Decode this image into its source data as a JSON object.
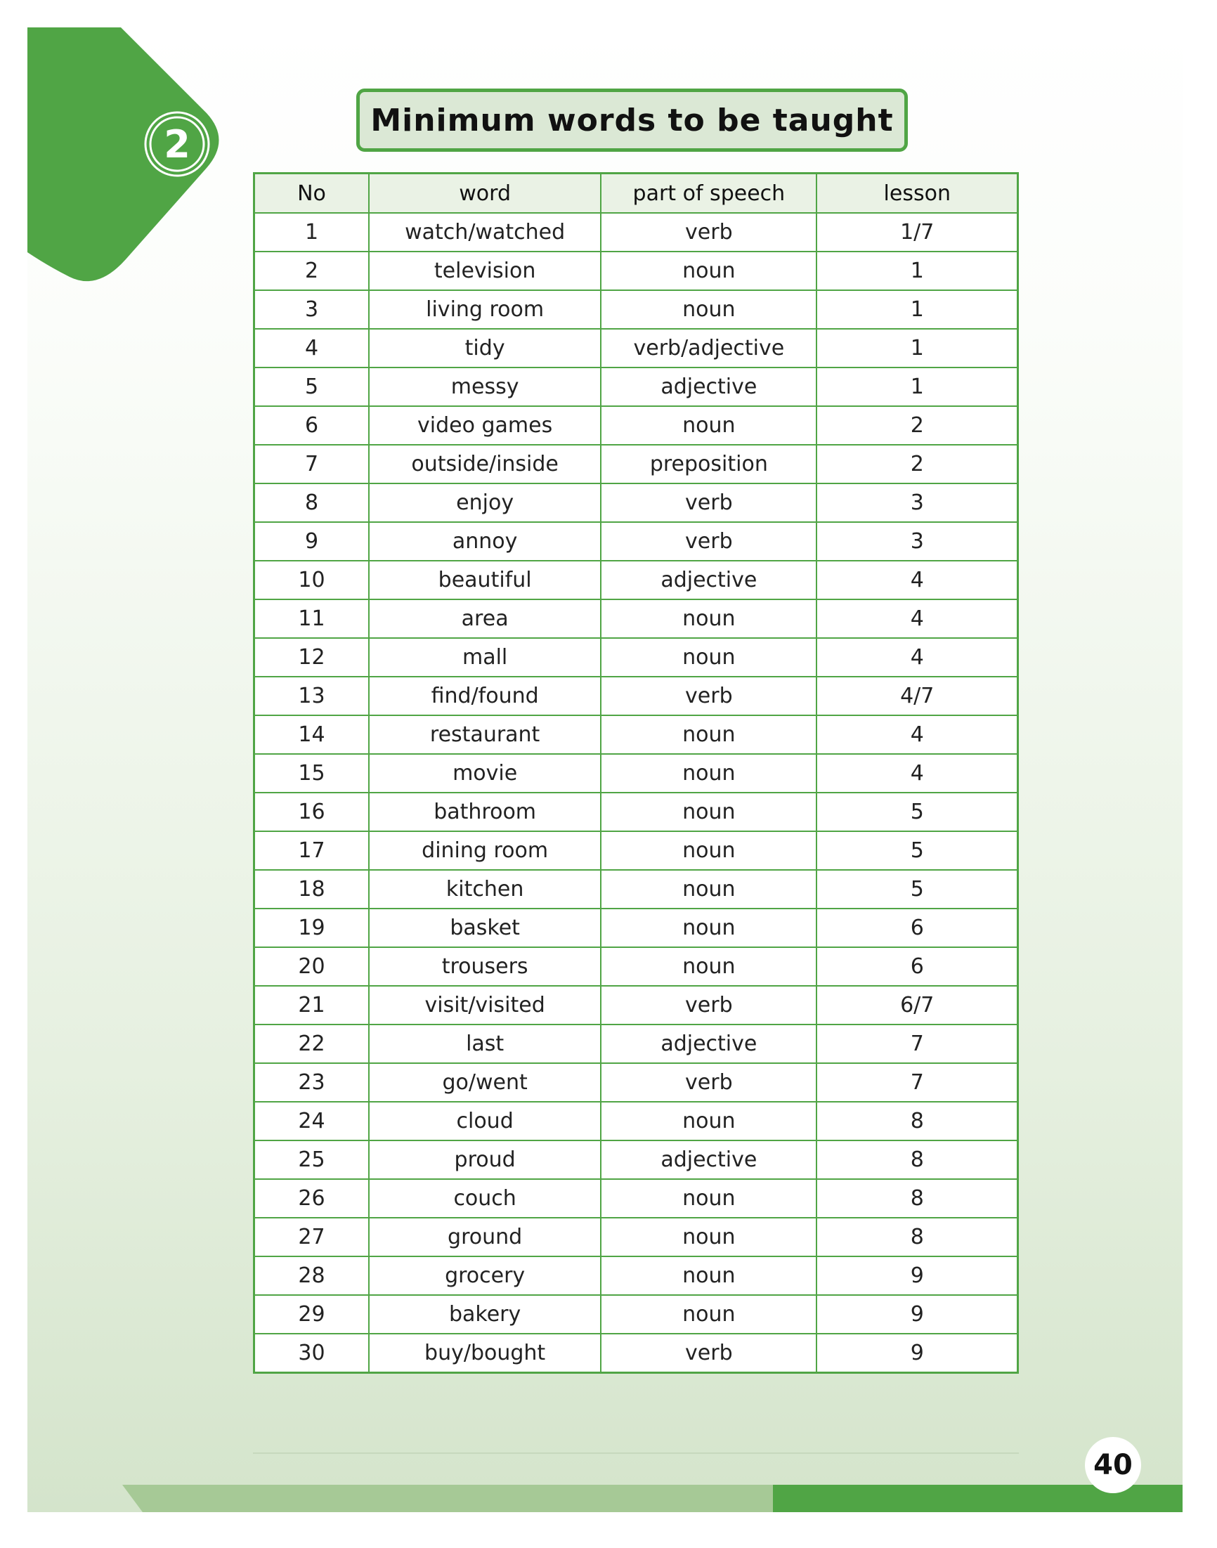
{
  "unit_number": "2",
  "title": "Minimum words to be taught",
  "page_number": "40",
  "colors": {
    "accent": "#50a545",
    "header_bg": "#eaf2e5",
    "title_bg": "#dbe8d5"
  },
  "table": {
    "headers": [
      "No",
      "word",
      "part of speech",
      "lesson"
    ],
    "rows": [
      [
        "1",
        "watch/watched",
        "verb",
        "1/7"
      ],
      [
        "2",
        "television",
        "noun",
        "1"
      ],
      [
        "3",
        "living room",
        "noun",
        "1"
      ],
      [
        "4",
        "tidy",
        "verb/adjective",
        "1"
      ],
      [
        "5",
        "messy",
        "adjective",
        "1"
      ],
      [
        "6",
        "video games",
        "noun",
        "2"
      ],
      [
        "7",
        "outside/inside",
        "preposition",
        "2"
      ],
      [
        "8",
        "enjoy",
        "verb",
        "3"
      ],
      [
        "9",
        "annoy",
        "verb",
        "3"
      ],
      [
        "10",
        "beautiful",
        "adjective",
        "4"
      ],
      [
        "11",
        "area",
        "noun",
        "4"
      ],
      [
        "12",
        "mall",
        "noun",
        "4"
      ],
      [
        "13",
        "find/found",
        "verb",
        "4/7"
      ],
      [
        "14",
        "restaurant",
        "noun",
        "4"
      ],
      [
        "15",
        "movie",
        "noun",
        "4"
      ],
      [
        "16",
        "bathroom",
        "noun",
        "5"
      ],
      [
        "17",
        "dining room",
        "noun",
        "5"
      ],
      [
        "18",
        "kitchen",
        "noun",
        "5"
      ],
      [
        "19",
        "basket",
        "noun",
        "6"
      ],
      [
        "20",
        "trousers",
        "noun",
        "6"
      ],
      [
        "21",
        "visit/visited",
        "verb",
        "6/7"
      ],
      [
        "22",
        "last",
        "adjective",
        "7"
      ],
      [
        "23",
        "go/went",
        "verb",
        "7"
      ],
      [
        "24",
        "cloud",
        "noun",
        "8"
      ],
      [
        "25",
        "proud",
        "adjective",
        "8"
      ],
      [
        "26",
        "couch",
        "noun",
        "8"
      ],
      [
        "27",
        "ground",
        "noun",
        "8"
      ],
      [
        "28",
        "grocery",
        "noun",
        "9"
      ],
      [
        "29",
        "bakery",
        "noun",
        "9"
      ],
      [
        "30",
        "buy/bought",
        "verb",
        "9"
      ]
    ]
  }
}
